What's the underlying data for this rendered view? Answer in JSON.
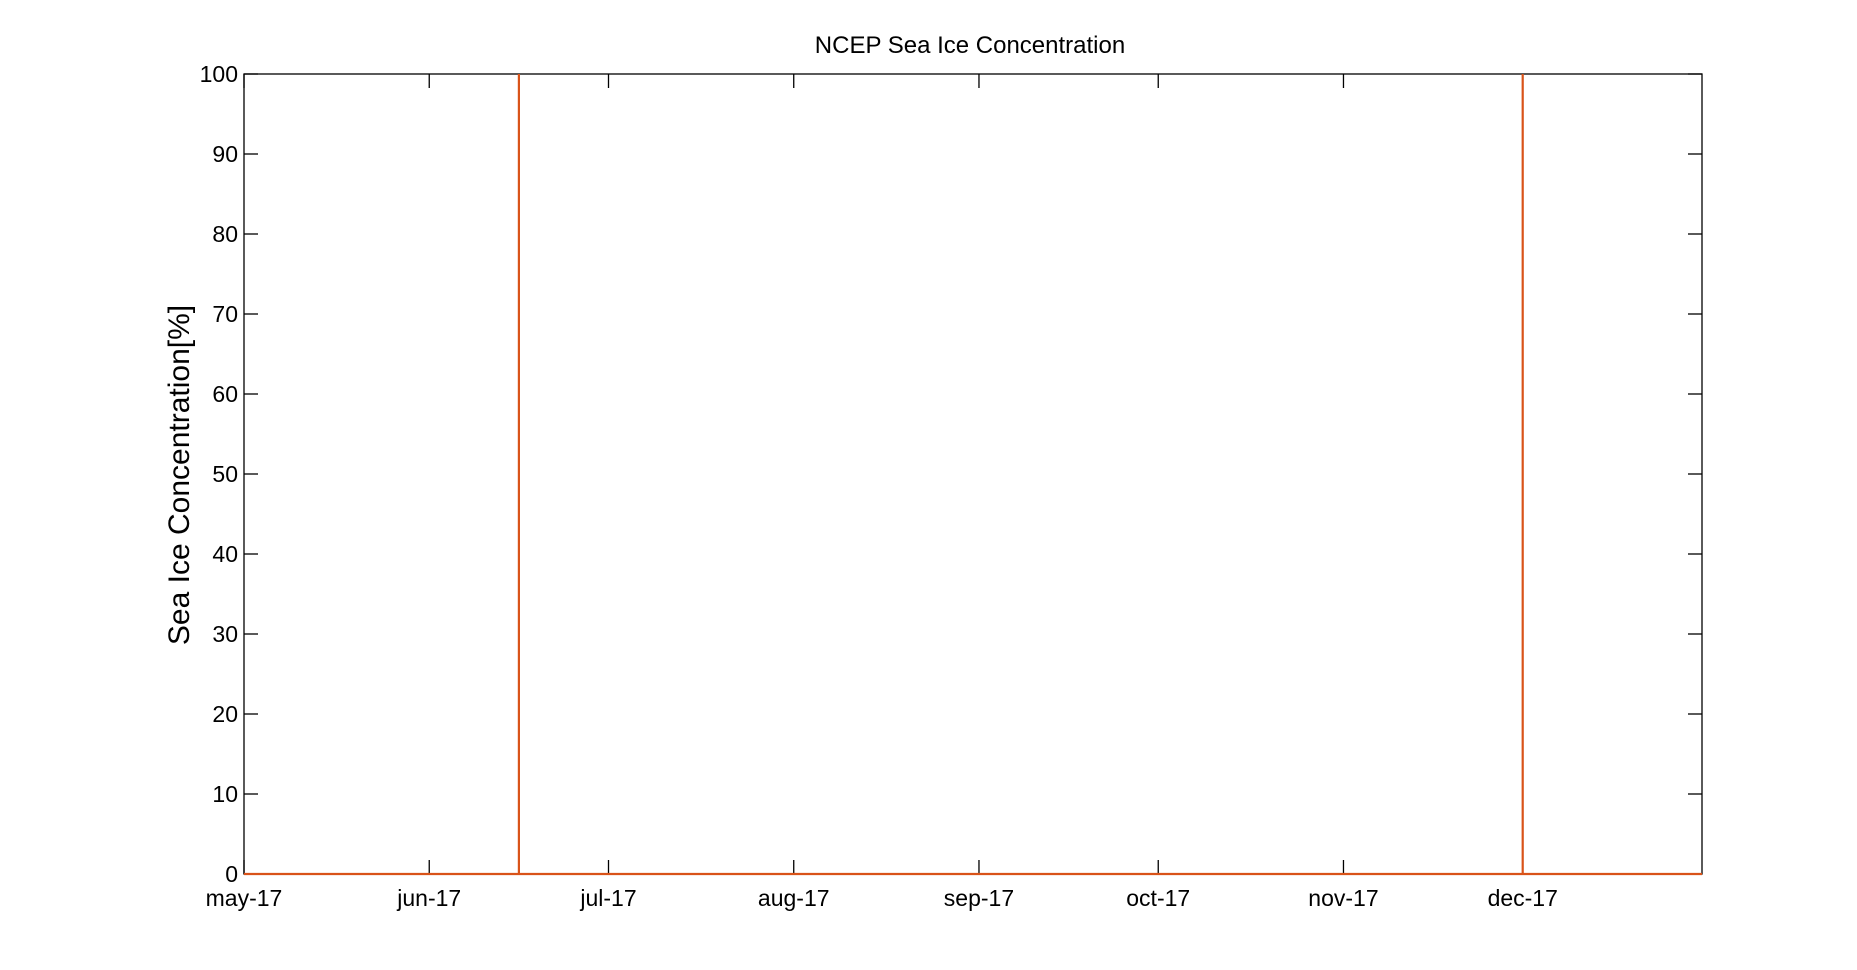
{
  "chart_data": {
    "type": "line",
    "title": "NCEP Sea Ice Concentration",
    "xlabel": "",
    "ylabel": "Sea Ice Concentration[%]",
    "ylim": [
      0,
      100
    ],
    "xlim": [
      "2017-05-01",
      "2017-12-31"
    ],
    "yticks": [
      0,
      10,
      20,
      30,
      40,
      50,
      60,
      70,
      80,
      90,
      100
    ],
    "xticks": [
      {
        "date": "2017-05-01",
        "label": "may-17"
      },
      {
        "date": "2017-06-01",
        "label": "jun-17"
      },
      {
        "date": "2017-07-01",
        "label": "jul-17"
      },
      {
        "date": "2017-08-01",
        "label": "aug-17"
      },
      {
        "date": "2017-09-01",
        "label": "sep-17"
      },
      {
        "date": "2017-10-01",
        "label": "oct-17"
      },
      {
        "date": "2017-11-01",
        "label": "nov-17"
      },
      {
        "date": "2017-12-01",
        "label": "dec-17"
      }
    ],
    "grid": false,
    "series": [
      {
        "color": "#d95319",
        "x": [
          "2017-05-01",
          "2017-06-16",
          "2017-06-16",
          "2017-06-16",
          "2017-06-16",
          "2017-06-16",
          "2017-06-16",
          "2017-06-16",
          "2017-06-16",
          "2017-12-01",
          "2017-12-01",
          "2017-12-01",
          "2017-12-01",
          "2017-12-01",
          "2017-12-01",
          "2017-12-01",
          "2017-12-01",
          "2017-12-31"
        ],
        "y": [
          0,
          0,
          25,
          25,
          75,
          75,
          100,
          100,
          0,
          0,
          100,
          100,
          75,
          75,
          25,
          25,
          0,
          0
        ]
      }
    ]
  }
}
